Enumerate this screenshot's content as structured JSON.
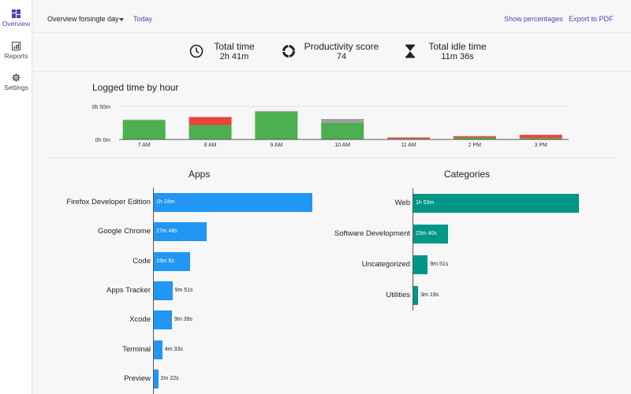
{
  "sidebar": {
    "items": [
      {
        "label": "Overview",
        "icon": "overview-icon",
        "active": true
      },
      {
        "label": "Reports",
        "icon": "reports-icon",
        "active": false
      },
      {
        "label": "Settings",
        "icon": "gear-icon",
        "active": false
      }
    ]
  },
  "topbar": {
    "overview_for_label": "Overview for",
    "period_selected": "single day",
    "today_link": "Today",
    "show_percentages": "Show percentages",
    "export_pdf": "Export to PDF"
  },
  "stats": {
    "total_time_label": "Total time",
    "total_time_value": "2h 41m",
    "productivity_label": "Productivity score",
    "productivity_value": "74",
    "idle_label": "Total idle time",
    "idle_value": "11m 36s"
  },
  "colors": {
    "productive": "#4caf50",
    "unproductive": "#e8453c",
    "neutral": "#a0a0a0",
    "apps_bar": "#2196f3",
    "categories_bar": "#009688",
    "accent": "#4b3fc4"
  },
  "chart_data": [
    {
      "type": "bar",
      "title": "Logged time by hour",
      "categories": [
        "7 AM",
        "8 AM",
        "9 AM",
        "10 AM",
        "11 AM",
        "2 PM",
        "3 PM"
      ],
      "y_tick_labels": [
        "0h 50m",
        "0h 0m"
      ],
      "ylim": [
        0,
        50
      ],
      "stacked": true,
      "series": [
        {
          "color": "#4caf50",
          "values": [
            29,
            22,
            42,
            25,
            1,
            3,
            2
          ]
        },
        {
          "color": "#e8453c",
          "values": [
            0,
            12,
            0,
            0,
            2,
            2,
            5
          ]
        },
        {
          "color": "#a0a0a0",
          "values": [
            1,
            0,
            1,
            6,
            0,
            0,
            0
          ]
        }
      ]
    },
    {
      "type": "bar",
      "orientation": "horizontal",
      "title": "Apps",
      "categories": [
        "Firefox Developer Edition",
        "Google Chrome",
        "Code",
        "Apps Tracker",
        "Xcode",
        "Terminal",
        "Preview"
      ],
      "values": [
        84,
        27.8,
        19.1,
        9.85,
        9.65,
        4.55,
        2.37
      ],
      "value_labels": [
        "1h 24m",
        "27m 48s",
        "19m 6s",
        "9m 51s",
        "9m 39s",
        "4m 33s",
        "2m 22s"
      ]
    },
    {
      "type": "bar",
      "orientation": "horizontal",
      "title": "Categories",
      "categories": [
        "Web",
        "Software Development",
        "Uncategorized",
        "Utilities"
      ],
      "values": [
        113,
        23.67,
        9.85,
        3.32
      ],
      "value_labels": [
        "1h 53m",
        "23m 40s",
        "9m 51s",
        "3m 19s"
      ]
    }
  ]
}
